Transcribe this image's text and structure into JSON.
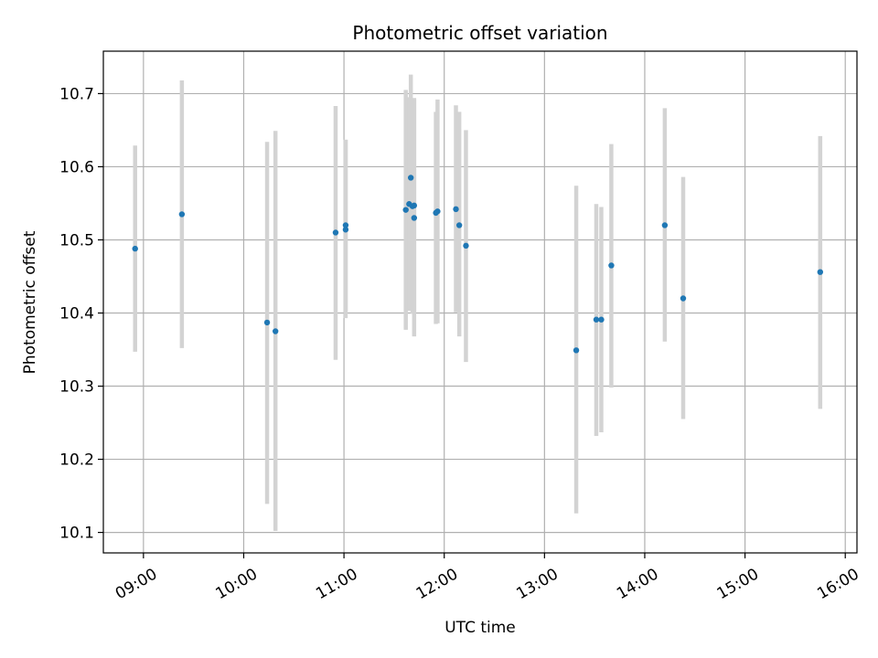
{
  "chart_data": {
    "type": "scatter",
    "title": "Photometric offset variation",
    "xlabel": "UTC time",
    "ylabel": "Photometric offset",
    "x_ticks": [
      "09:00",
      "10:00",
      "11:00",
      "12:00",
      "13:00",
      "14:00",
      "15:00",
      "16:00"
    ],
    "y_ticks": [
      "10.1",
      "10.2",
      "10.3",
      "10.4",
      "10.5",
      "10.6",
      "10.7"
    ],
    "xlim": [
      "08:36",
      "16:07"
    ],
    "ylim": [
      10.072,
      10.758
    ],
    "grid": true,
    "error_bars": true,
    "colors": {
      "point": "#1f77b4",
      "errorbar": "#d3d3d3",
      "grid": "#b0b0b0"
    },
    "points": [
      {
        "x": "08:55",
        "y": 10.488,
        "ylo": 10.347,
        "yhi": 10.629
      },
      {
        "x": "09:23",
        "y": 10.535,
        "ylo": 10.352,
        "yhi": 10.718
      },
      {
        "x": "10:14",
        "y": 10.387,
        "ylo": 10.139,
        "yhi": 10.634
      },
      {
        "x": "10:19",
        "y": 10.375,
        "ylo": 10.102,
        "yhi": 10.649
      },
      {
        "x": "10:55",
        "y": 10.51,
        "ylo": 10.336,
        "yhi": 10.683
      },
      {
        "x": "11:01",
        "y": 10.514,
        "ylo": 10.393,
        "yhi": 10.637
      },
      {
        "x": "11:01",
        "y": 10.52,
        "ylo": 10.403,
        "yhi": 10.637
      },
      {
        "x": "11:37",
        "y": 10.541,
        "ylo": 10.377,
        "yhi": 10.705
      },
      {
        "x": "11:39",
        "y": 10.549,
        "ylo": 10.403,
        "yhi": 10.695
      },
      {
        "x": "11:40",
        "y": 10.585,
        "ylo": 10.446,
        "yhi": 10.726
      },
      {
        "x": "11:41",
        "y": 10.546,
        "ylo": 10.399,
        "yhi": 10.693
      },
      {
        "x": "11:42",
        "y": 10.547,
        "ylo": 10.4,
        "yhi": 10.694
      },
      {
        "x": "11:42",
        "y": 10.53,
        "ylo": 10.368,
        "yhi": 10.692
      },
      {
        "x": "11:55",
        "y": 10.537,
        "ylo": 10.385,
        "yhi": 10.675
      },
      {
        "x": "11:56",
        "y": 10.539,
        "ylo": 10.386,
        "yhi": 10.692
      },
      {
        "x": "12:07",
        "y": 10.542,
        "ylo": 10.401,
        "yhi": 10.684
      },
      {
        "x": "12:09",
        "y": 10.52,
        "ylo": 10.368,
        "yhi": 10.675
      },
      {
        "x": "12:13",
        "y": 10.492,
        "ylo": 10.333,
        "yhi": 10.65
      },
      {
        "x": "13:19",
        "y": 10.349,
        "ylo": 10.126,
        "yhi": 10.574
      },
      {
        "x": "13:31",
        "y": 10.391,
        "ylo": 10.232,
        "yhi": 10.549
      },
      {
        "x": "13:34",
        "y": 10.391,
        "ylo": 10.237,
        "yhi": 10.545
      },
      {
        "x": "13:40",
        "y": 10.465,
        "ylo": 10.298,
        "yhi": 10.631
      },
      {
        "x": "14:12",
        "y": 10.52,
        "ylo": 10.361,
        "yhi": 10.68
      },
      {
        "x": "14:23",
        "y": 10.42,
        "ylo": 10.255,
        "yhi": 10.586
      },
      {
        "x": "15:45",
        "y": 10.456,
        "ylo": 10.269,
        "yhi": 10.642
      }
    ]
  }
}
